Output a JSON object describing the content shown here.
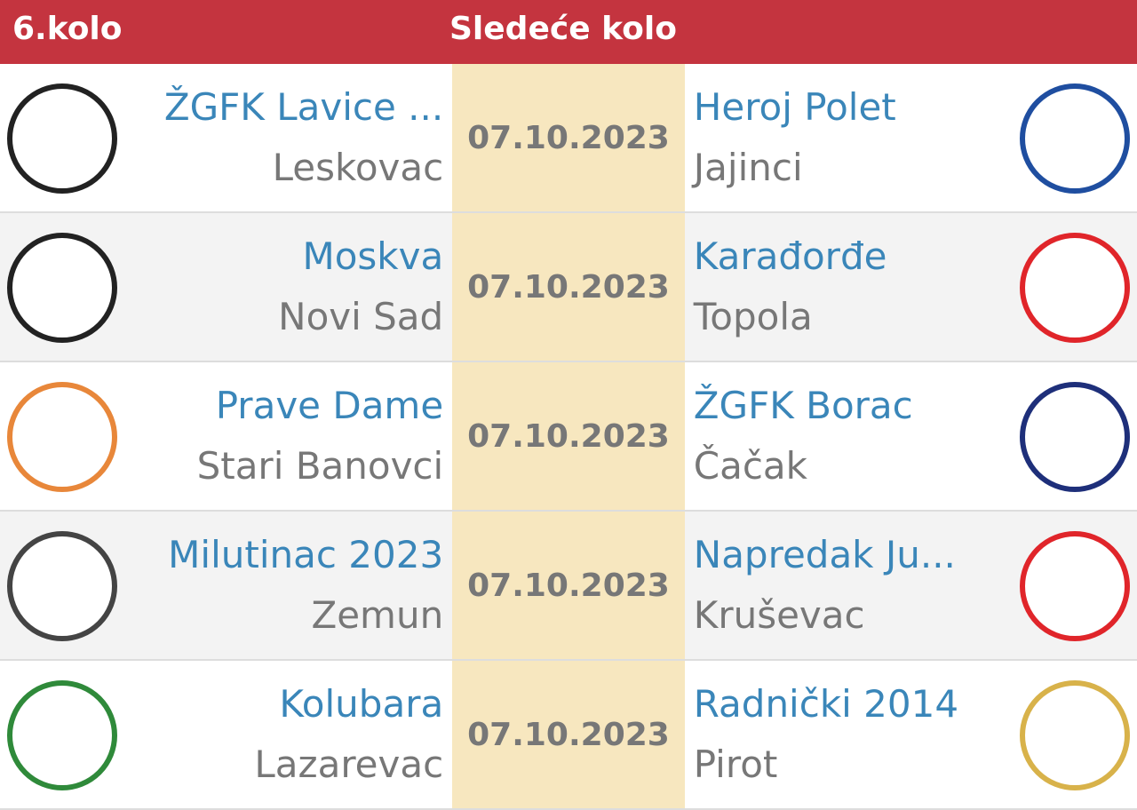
{
  "header": {
    "round": "6.kolo",
    "next": "Sledeće kolo"
  },
  "colors": {
    "header": "#c4343f",
    "team": "#3a86b9",
    "date_bg": "#f7e7bf"
  },
  "matches": [
    {
      "home": "ŽGFK Lavice ...",
      "home_city": "Leskovac",
      "date": "07.10.2023",
      "away": "Heroj Polet",
      "away_city": "Jajinci",
      "home_logo": "#222",
      "away_logo": "#1f4ea0"
    },
    {
      "home": "Moskva",
      "home_city": "Novi Sad",
      "date": "07.10.2023",
      "away": "Karađorđe",
      "away_city": "Topola",
      "home_logo": "#222",
      "away_logo": "#e0252a"
    },
    {
      "home": "Prave Dame",
      "home_city": "Stari Banovci",
      "date": "07.10.2023",
      "away": "ŽGFK Borac",
      "away_city": "Čačak",
      "home_logo": "#e8873a",
      "away_logo": "#1e2f7a"
    },
    {
      "home": "Milutinac 2023",
      "home_city": "Zemun",
      "date": "07.10.2023",
      "away": "Napredak Ju...",
      "away_city": "Kruševac",
      "home_logo": "#444",
      "away_logo": "#e0252a"
    },
    {
      "home": "Kolubara",
      "home_city": "Lazarevac",
      "date": "07.10.2023",
      "away": "Radnički 2014",
      "away_city": "Pirot",
      "home_logo": "#2f8a3a",
      "away_logo": "#d8b24a"
    }
  ]
}
